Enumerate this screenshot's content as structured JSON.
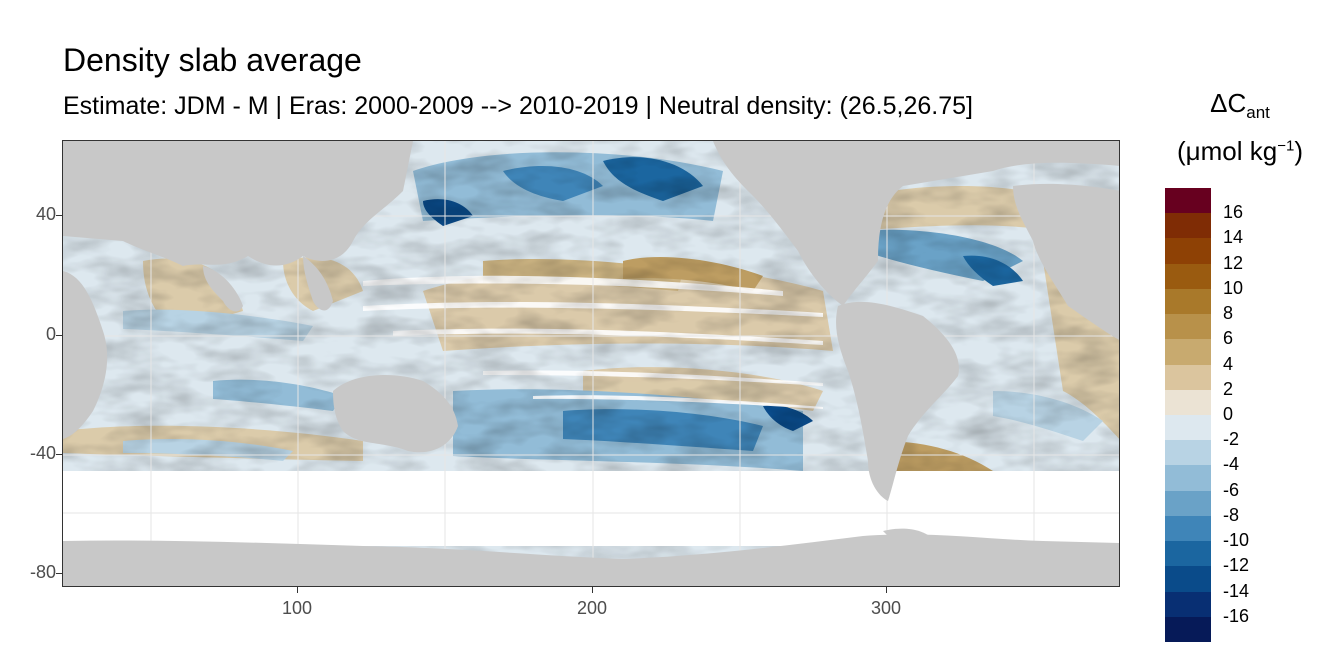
{
  "title": "Density slab average",
  "subtitle": "Estimate: JDM - M | Eras: 2000-2009 --> 2010-2019 | Neutral density: (26.5,26.75]",
  "legend": {
    "title_main": "ΔC",
    "title_sub": "ant",
    "unit_pre": "(μmol kg",
    "unit_sup": "−1",
    "unit_post": ")",
    "labels": [
      "16",
      "14",
      "12",
      "10",
      "8",
      "6",
      "4",
      "2",
      "0",
      "-2",
      "-4",
      "-6",
      "-8",
      "-10",
      "-12",
      "-14",
      "-16"
    ],
    "colors": [
      "#67001f",
      "#7f2c05",
      "#8e4105",
      "#9a5b10",
      "#a9792a",
      "#b8914a",
      "#c8aa6f",
      "#dbc59e",
      "#ebe3d4",
      "#dde8ef",
      "#b8d3e4",
      "#92bcd7",
      "#6aa2c7",
      "#3f85b8",
      "#1b66a0",
      "#0a4b8a",
      "#082f73",
      "#061a58"
    ]
  },
  "axes": {
    "x_ticks": [
      "100",
      "200",
      "300"
    ],
    "y_ticks": [
      "40",
      "0",
      "-40",
      "-80"
    ]
  },
  "chart_data": {
    "type": "heatmap",
    "title": "Density slab average",
    "subtitle": "Estimate: JDM - M | Eras: 2000-2009 --> 2010-2019 | Neutral density: (26.5,26.75]",
    "xlim": [
      20,
      380
    ],
    "ylim": [
      -85,
      65
    ],
    "x_ticks": [
      100,
      200,
      300
    ],
    "y_ticks": [
      40,
      0,
      -40,
      -80
    ],
    "colorbar": {
      "title": "ΔCant (μmol kg−1)",
      "range": [
        -18,
        18
      ],
      "step": 2,
      "tick_labels": [
        16,
        14,
        12,
        10,
        8,
        6,
        4,
        2,
        0,
        -2,
        -4,
        -6,
        -8,
        -10,
        -12,
        -14,
        -16
      ]
    },
    "land_color": "#c8c8c8",
    "no_data_color": "#ffffff",
    "grid": true
  }
}
